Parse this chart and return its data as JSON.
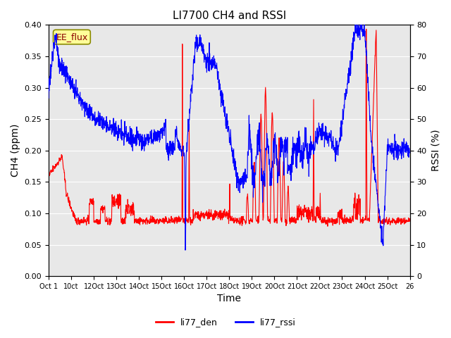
{
  "title": "LI7700 CH4 and RSSI",
  "xlabel": "Time",
  "ylabel_left": "CH4 (ppm)",
  "ylabel_right": "RSSI (%)",
  "ylim_left": [
    0.0,
    0.4
  ],
  "ylim_right": [
    0,
    80
  ],
  "yticks_left": [
    0.0,
    0.05,
    0.1,
    0.15,
    0.2,
    0.25,
    0.3,
    0.35,
    0.4
  ],
  "yticks_right": [
    0,
    10,
    20,
    30,
    40,
    50,
    60,
    70,
    80
  ],
  "xtick_labels": [
    "Oct 1",
    "10ct",
    "12Oct",
    "13Oct",
    "14Oct",
    "15Oct",
    "16Oct",
    "17Oct",
    "18Oct",
    "19Oct",
    "20Oct",
    "21Oct",
    "22Oct",
    "23Oct",
    "24Oct",
    "25Oct",
    "26"
  ],
  "watermark_text": "EE_flux",
  "legend_entries": [
    "li77_den",
    "li77_rssi"
  ],
  "line_color_red": "#ff0000",
  "line_color_blue": "#0000ff",
  "bg_color": "#e8e8e8",
  "fig_bg_color": "#ffffff",
  "n_points": 1600
}
